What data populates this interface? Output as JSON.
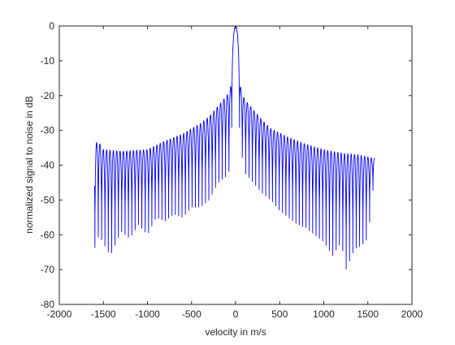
{
  "chart_data": {
    "type": "line",
    "title": "",
    "xlabel": "velocity in m/s",
    "ylabel": "normalized signal to noise in dB",
    "xlim": [
      -2000,
      2000
    ],
    "ylim": [
      -80,
      0
    ],
    "xticks": [
      -2000,
      -1500,
      -1000,
      -500,
      0,
      500,
      1000,
      1500,
      2000
    ],
    "yticks": [
      0,
      -10,
      -20,
      -30,
      -40,
      -50,
      -60,
      -70,
      -80
    ],
    "grid": false,
    "legend": "none",
    "series": [
      {
        "color": "#0000ff",
        "x_range": [
          -1600,
          1580
        ],
        "description_points": {
          "main_lobe_peak": [
            0,
            0
          ],
          "first_sidelobe": [
            -20,
            -13.5
          ],
          "right_first_null": [
            60,
            -35
          ],
          "left_envelope_start": [
            -1560,
            -33
          ],
          "right_envelope_end": [
            1560,
            -38
          ],
          "deepest_nulls": [
            [
              -1420,
              -66
            ],
            [
              1100,
              -66
            ],
            [
              1250,
              -70
            ],
            [
              1430,
              -63
            ]
          ]
        },
        "lobe_spacing": 38,
        "envelope": [
          [
            -1600,
            -34
          ],
          [
            -1560,
            -33
          ],
          [
            -1500,
            -35.5
          ],
          [
            -1300,
            -36
          ],
          [
            -1000,
            -35.5
          ],
          [
            -800,
            -33
          ],
          [
            -600,
            -31
          ],
          [
            -400,
            -28
          ],
          [
            -300,
            -26
          ],
          [
            -200,
            -23
          ],
          [
            -100,
            -20
          ],
          [
            -50,
            -17
          ],
          [
            -20,
            -13.5
          ],
          [
            20,
            -14
          ],
          [
            50,
            -17
          ],
          [
            100,
            -21
          ],
          [
            200,
            -24
          ],
          [
            300,
            -27
          ],
          [
            400,
            -29.5
          ],
          [
            600,
            -32
          ],
          [
            800,
            -34
          ],
          [
            1000,
            -35.5
          ],
          [
            1200,
            -36.5
          ],
          [
            1400,
            -37
          ],
          [
            1560,
            -38
          ],
          [
            1580,
            -38
          ]
        ],
        "null_depth": [
          [
            -1600,
            -64
          ],
          [
            -1550,
            -60
          ],
          [
            -1420,
            -66
          ],
          [
            -1300,
            -59
          ],
          [
            -1200,
            -61
          ],
          [
            -1100,
            -57
          ],
          [
            -1000,
            -60
          ],
          [
            -900,
            -55
          ],
          [
            -800,
            -56
          ],
          [
            -700,
            -54
          ],
          [
            -600,
            -55
          ],
          [
            -500,
            -52
          ],
          [
            -400,
            -52
          ],
          [
            -300,
            -50
          ],
          [
            -200,
            -45
          ],
          [
            -100,
            -43
          ],
          [
            -40,
            -40
          ],
          [
            60,
            -35
          ],
          [
            100,
            -42
          ],
          [
            200,
            -45
          ],
          [
            300,
            -48
          ],
          [
            400,
            -50
          ],
          [
            500,
            -53
          ],
          [
            600,
            -55
          ],
          [
            700,
            -57
          ],
          [
            800,
            -58
          ],
          [
            900,
            -60
          ],
          [
            1000,
            -62
          ],
          [
            1100,
            -66
          ],
          [
            1200,
            -62
          ],
          [
            1250,
            -70
          ],
          [
            1350,
            -64
          ],
          [
            1430,
            -63
          ],
          [
            1500,
            -61
          ],
          [
            1580,
            -42
          ]
        ]
      }
    ]
  }
}
